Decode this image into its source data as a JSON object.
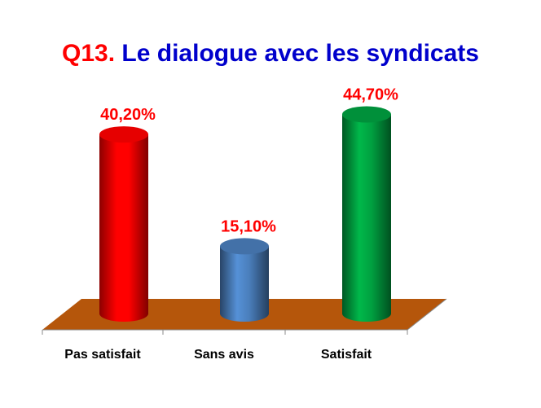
{
  "chart_data": {
    "type": "bar",
    "title": [
      "Q13.",
      "Le dialogue avec les syndicats"
    ],
    "categories": [
      "Pas satisfait",
      "Sans avis",
      "Satisfait"
    ],
    "values": [
      40.2,
      15.1,
      44.7
    ],
    "value_labels": [
      "40,20%",
      "15,10%",
      "44,70%"
    ],
    "colors": [
      "#ff0000",
      "#4a7ebb",
      "#00a040"
    ]
  }
}
